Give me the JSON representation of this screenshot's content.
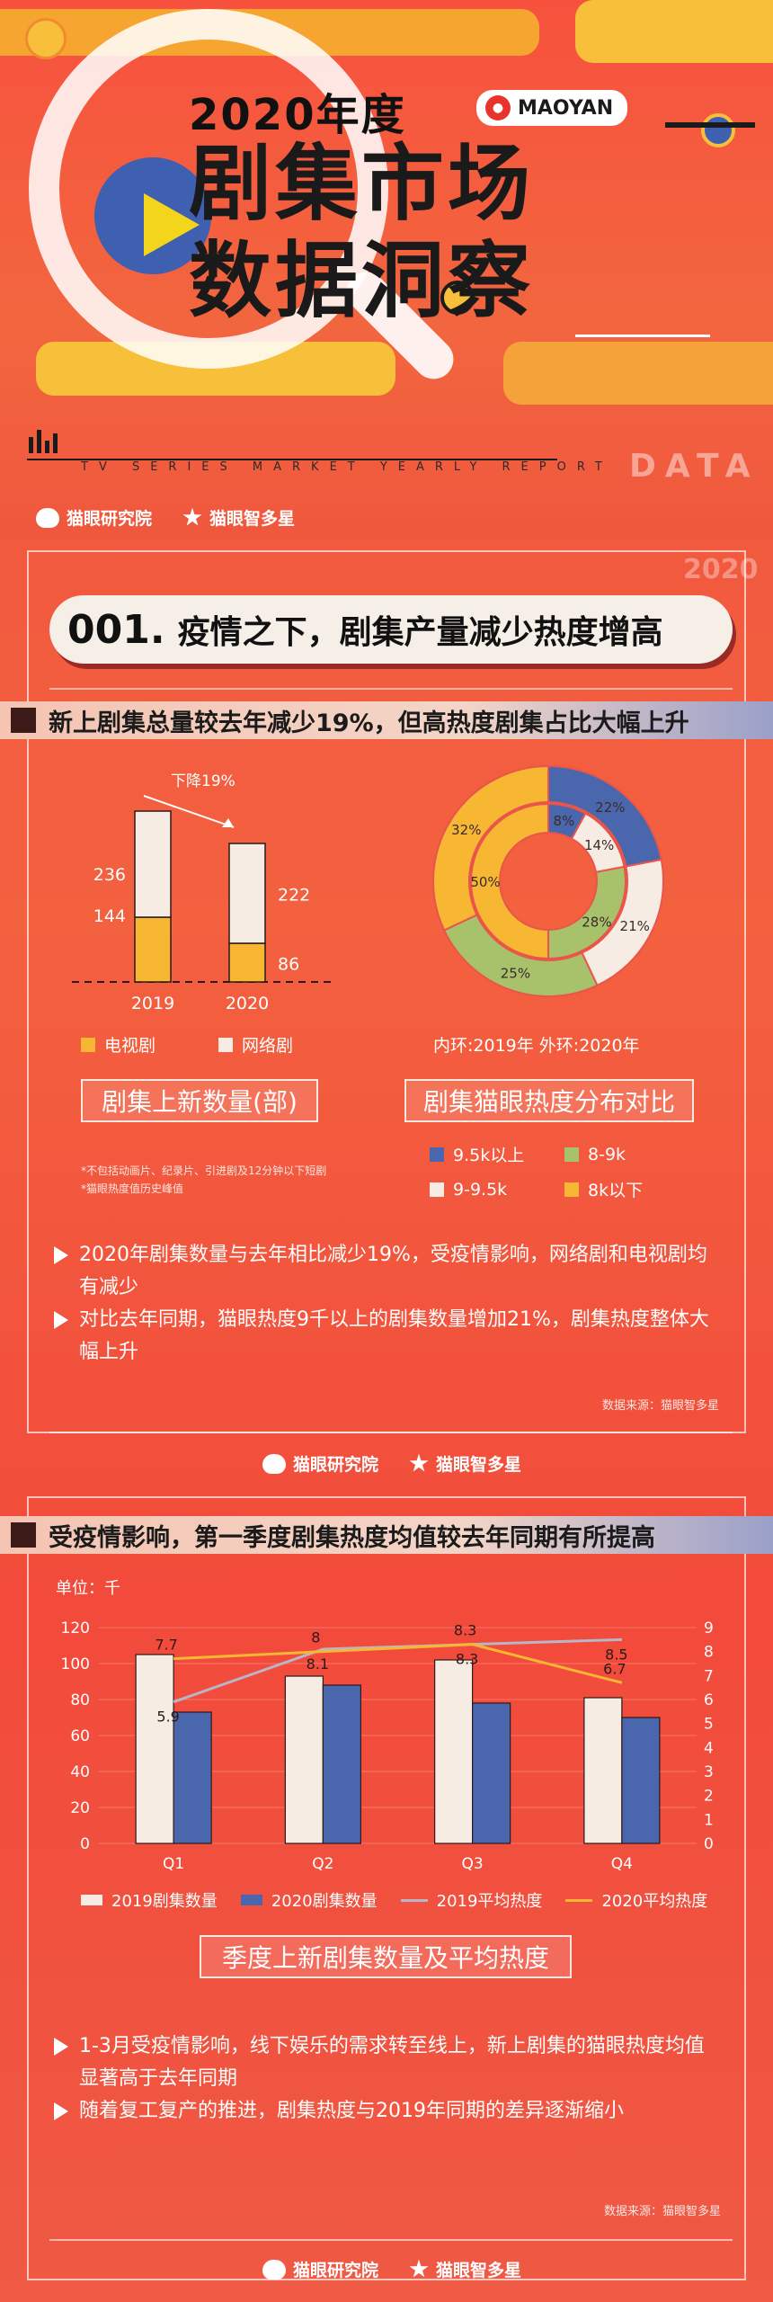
{
  "header": {
    "year_title": "2020年度",
    "title_line1": "剧集市场",
    "title_line2": "数据洞察",
    "brand": "MAOYAN",
    "subtitle_en": "TV SERIES MARKET YEARLY REPORT",
    "data_word": "DATA",
    "logo1": "猫眼研究院",
    "logo2": "猫眼智多星",
    "watermark_year": "2020"
  },
  "section1": {
    "number": "001.",
    "title": "疫情之下，剧集产量减少热度增高",
    "headline": "新上剧集总量较去年减少19%，但高热度剧集占比大幅上升",
    "bar_caption": "剧集上新数量(部)",
    "donut_caption": "剧集猫眼热度分布对比",
    "donut_ring_note": "内环:2019年   外环:2020年",
    "decline_label": "下降19%",
    "notes": [
      "*不包括动画片、纪录片、引进剧及12分钟以下短剧",
      "*猫眼热度值历史峰值"
    ],
    "bar_legend": [
      "电视剧",
      "网络剧"
    ],
    "donut_legend": [
      "9.5k以上",
      "8-9k",
      "9-9.5k",
      "8k以下"
    ],
    "bullets": [
      "2020年剧集数量与去年相比减少19%，受疫情影响，网络剧和电视剧均有减少",
      "对比去年同期，猫眼热度9千以上的剧集数量增加21%，剧集热度整体大幅上升"
    ],
    "source": "数据来源：猫眼智多星"
  },
  "section2": {
    "headline": "受疫情影响，第一季度剧集热度均值较去年同期有所提高",
    "unit_label": "单位：千",
    "caption": "季度上新剧集数量及平均热度",
    "legend": [
      "2019剧集数量",
      "2020剧集数量",
      "2019平均热度",
      "2020平均热度"
    ],
    "bullets": [
      "1-3月受疫情影响，线下娱乐的需求转至线上，新上剧集的猫眼热度均值显著高于去年同期",
      "随着复工复产的推进，剧集热度与2019年同期的差异逐渐缩小"
    ],
    "source": "数据来源：猫眼智多星"
  },
  "colors": {
    "orange": "#f7b733",
    "cream": "#f7ece3",
    "blue": "#4a67ae",
    "green": "#a8c26c",
    "gray_line": "#b9b5c8",
    "yellow_line": "#f7b733"
  },
  "chart_data": [
    {
      "type": "bar",
      "title": "剧集上新数量(部)",
      "categories": [
        "2019",
        "2020"
      ],
      "series": [
        {
          "name": "电视剧",
          "values": [
            144,
            86
          ]
        },
        {
          "name": "网络剧",
          "values": [
            236,
            222
          ]
        }
      ],
      "annotation": "下降19%",
      "stacked": true
    },
    {
      "type": "pie",
      "title": "剧集猫眼热度分布对比",
      "rings": [
        {
          "name": "2019",
          "labels": [
            "9.5k以上",
            "9-9.5k",
            "8-9k",
            "8k以下"
          ],
          "values": [
            8,
            14,
            28,
            50
          ]
        },
        {
          "name": "2020",
          "labels": [
            "9.5k以上",
            "9-9.5k",
            "8-9k",
            "8k以下"
          ],
          "values": [
            22,
            21,
            25,
            32
          ]
        }
      ]
    },
    {
      "type": "bar",
      "title": "季度上新剧集数量及平均热度",
      "categories": [
        "Q1",
        "Q2",
        "Q3",
        "Q4"
      ],
      "series": [
        {
          "name": "2019剧集数量",
          "values": [
            105,
            93,
            102,
            81
          ]
        },
        {
          "name": "2020剧集数量",
          "values": [
            73,
            88,
            78,
            70
          ]
        }
      ],
      "line_series": [
        {
          "name": "2019平均热度",
          "values": [
            5.9,
            8.1,
            8.3,
            8.5
          ]
        },
        {
          "name": "2020平均热度",
          "values": [
            7.7,
            8,
            8.3,
            6.7
          ]
        }
      ],
      "ylim_left": [
        0,
        120
      ],
      "ylim_right": [
        0,
        9
      ],
      "left_ticks": [
        0,
        20,
        40,
        60,
        80,
        100,
        120
      ],
      "right_ticks": [
        0,
        1,
        2,
        3,
        4,
        5,
        6,
        7,
        8,
        9
      ]
    }
  ]
}
